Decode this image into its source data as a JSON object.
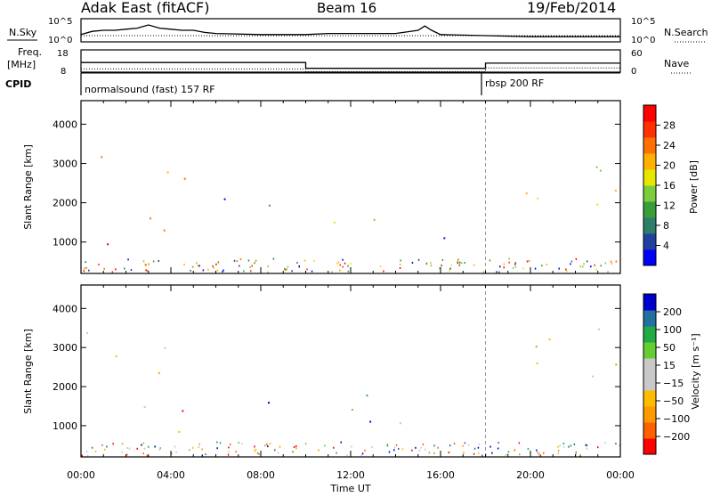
{
  "header": {
    "radar": "Adak East (fitACF)",
    "beam": "Beam 16",
    "date": "19/Feb/2014"
  },
  "colors": {
    "ink": "#000000",
    "background": "#ffffff"
  },
  "chart_data": [
    {
      "type": "line",
      "panel": "noise",
      "left_label": "N.Sky",
      "right_label": "N.Search",
      "left_ticks": [
        "10^5",
        "10^0"
      ],
      "right_ticks": [
        "10^5",
        "10^0"
      ],
      "x": [
        0.0,
        0.5,
        1.0,
        1.5,
        2.0,
        2.5,
        3.0,
        3.5,
        4.0,
        4.5,
        5.0,
        5.5,
        6.0,
        8.0,
        10.0,
        11.0,
        12.0,
        13.0,
        14.0,
        15.0,
        15.3,
        15.6,
        16.0,
        18.0,
        20.0,
        22.0,
        24.0
      ],
      "series": [
        {
          "values": [
            0.3,
            0.45,
            0.5,
            0.5,
            0.55,
            0.6,
            0.75,
            0.6,
            0.55,
            0.5,
            0.5,
            0.4,
            0.35,
            0.3,
            0.3,
            0.35,
            0.35,
            0.35,
            0.35,
            0.5,
            0.7,
            0.5,
            0.3,
            0.25,
            0.2,
            0.2,
            0.2
          ]
        }
      ]
    },
    {
      "type": "line",
      "panel": "frequency",
      "left_label": "Freq.",
      "left_unit": "[MHz]",
      "right_label": "Nave",
      "left_ticks": [
        "18",
        "8"
      ],
      "right_ticks": [
        "60",
        "0"
      ],
      "series": [
        {
          "x": [
            0,
            10,
            10,
            18,
            18,
            24
          ],
          "values": [
            12.5,
            12.5,
            9.8,
            9.8,
            12.2,
            12.2
          ]
        },
        {
          "x": [
            0,
            10,
            10,
            18,
            18,
            24
          ],
          "values": [
            9.5,
            9.5,
            8.2,
            8.2,
            10.0,
            10.0
          ]
        }
      ]
    },
    {
      "type": "table",
      "panel": "cpid",
      "label": "CPID",
      "segments": [
        {
          "start": 0,
          "end": 18,
          "text": "normalsound (fast) 157 RF"
        },
        {
          "start": 18,
          "end": 24,
          "text": "rbsp 200 RF"
        }
      ]
    },
    {
      "type": "heatmap",
      "panel": "power",
      "ylabel": "Slant Range [km]",
      "xlabel": "Time UT",
      "yticks": [
        1000,
        2000,
        3000,
        4000
      ],
      "ylim": [
        200,
        4600
      ],
      "xlim": [
        0,
        24
      ],
      "xticks": [
        "00:00",
        "04:00",
        "08:00",
        "12:00",
        "16:00",
        "20:00",
        "00:00"
      ],
      "colorbar": {
        "label": "Power [dB]",
        "ticks": [
          "28",
          "24",
          "20",
          "16",
          "12",
          "8",
          "4"
        ],
        "colors": [
          "#0000ff",
          "#2040a0",
          "#2e7d6a",
          "#3a9d3a",
          "#7ccd3c",
          "#e6e600",
          "#ffb000",
          "#ff7000",
          "#ff3000",
          "#ff0000"
        ]
      },
      "regions": [
        {
          "t0": 0.1,
          "t1": 4.6,
          "r0": 800,
          "r1": 3500,
          "level": 0.72
        },
        {
          "t0": 0.1,
          "t1": 4.6,
          "r0": 850,
          "r1": 1400,
          "level": 0.95
        },
        {
          "t0": 4.6,
          "t1": 5.5,
          "r0": 1000,
          "r1": 2200,
          "level": 0.85
        },
        {
          "t0": 5.4,
          "t1": 6.5,
          "r0": 1100,
          "r1": 2300,
          "level": 0.2
        },
        {
          "t0": 7.6,
          "t1": 9.2,
          "r0": 1000,
          "r1": 2300,
          "level": 0.35
        },
        {
          "t0": 10.4,
          "t1": 13.4,
          "r0": 1000,
          "r1": 2400,
          "level": 0.45
        },
        {
          "t0": 14.0,
          "t1": 16.6,
          "r0": 1000,
          "r1": 1700,
          "level": 0.15
        },
        {
          "t0": 18.6,
          "t1": 23.9,
          "r0": 1300,
          "r1": 3500,
          "level": 0.55
        },
        {
          "t0": 21.5,
          "t1": 23.9,
          "r0": 2800,
          "r1": 4200,
          "level": 0.4
        }
      ]
    },
    {
      "type": "heatmap",
      "panel": "velocity",
      "ylabel": "Slant Range [km]",
      "xlabel": "Time UT",
      "yticks": [
        1000,
        2000,
        3000,
        4000
      ],
      "ylim": [
        200,
        4600
      ],
      "xlim": [
        0,
        24
      ],
      "xticks": [
        "00:00",
        "04:00",
        "08:00",
        "12:00",
        "16:00",
        "20:00",
        "00:00"
      ],
      "colorbar": {
        "label": "Velocity [m s⁻¹]",
        "ticks": [
          "200",
          "100",
          "50",
          "15",
          "−15",
          "−50",
          "−100",
          "−200"
        ],
        "colors": [
          "#ff0000",
          "#ff6000",
          "#ff9900",
          "#ffbb00",
          "#c8c8c8",
          "#c8c8c8",
          "#66cc33",
          "#22aa44",
          "#2070a0",
          "#0000cc"
        ]
      },
      "regions": [
        {
          "t0": 0.1,
          "t1": 4.6,
          "r0": 800,
          "r1": 3500,
          "level": 0.45
        },
        {
          "t0": 0.1,
          "t1": 4.6,
          "r0": 800,
          "r1": 1200,
          "level": 0.5
        },
        {
          "t0": 4.0,
          "t1": 5.3,
          "r0": 900,
          "r1": 2200,
          "level": 0.15
        },
        {
          "t0": 5.3,
          "t1": 6.3,
          "r0": 1000,
          "r1": 2100,
          "level": 0.05
        },
        {
          "t0": 7.8,
          "t1": 9.2,
          "r0": 1000,
          "r1": 2300,
          "level": 0.92
        },
        {
          "t0": 10.4,
          "t1": 13.3,
          "r0": 1100,
          "r1": 2400,
          "level": 0.95
        },
        {
          "t0": 12.0,
          "t1": 13.4,
          "r0": 1000,
          "r1": 2200,
          "level": 0.7
        },
        {
          "t0": 14.0,
          "t1": 16.5,
          "r0": 1000,
          "r1": 1600,
          "level": 0.5
        },
        {
          "t0": 18.6,
          "t1": 23.9,
          "r0": 1300,
          "r1": 3500,
          "level": 0.5
        },
        {
          "t0": 21.5,
          "t1": 23.9,
          "r0": 2800,
          "r1": 4200,
          "level": 0.5
        }
      ]
    }
  ]
}
